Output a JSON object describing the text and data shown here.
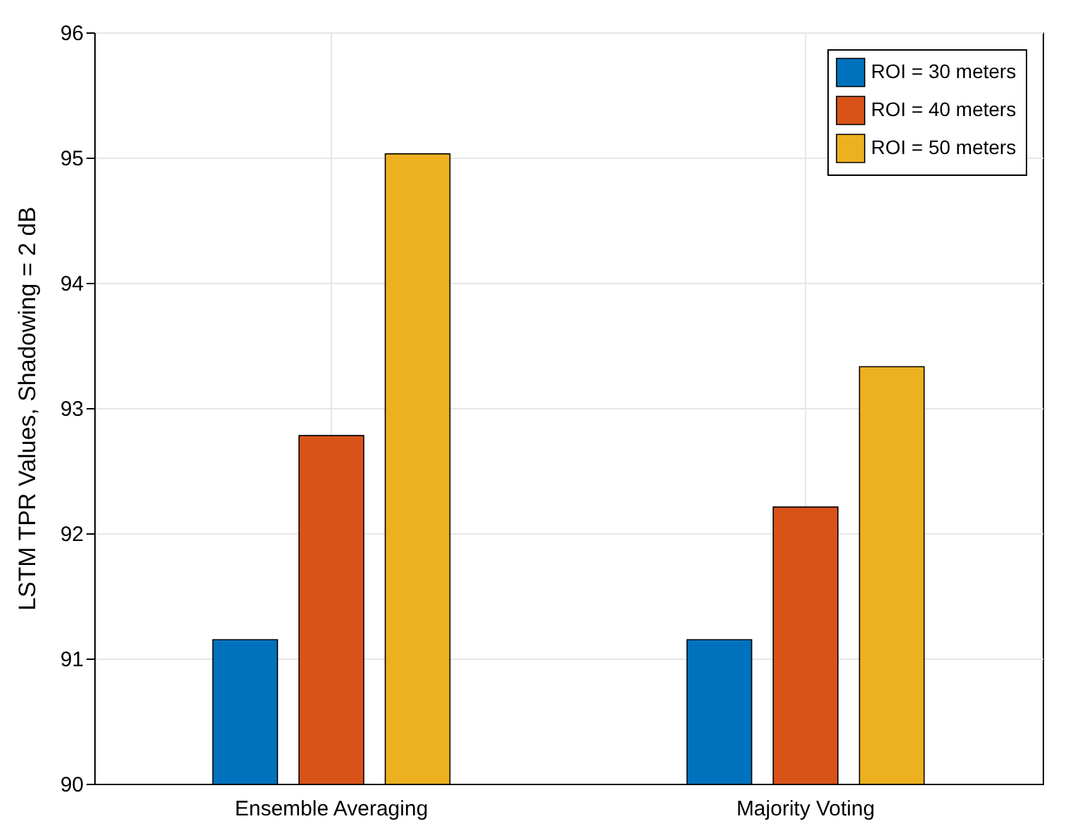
{
  "chart_data": {
    "type": "bar",
    "ylabel": "LSTM TPR Values, Shadowing = 2 dB",
    "categories": [
      "Ensemble Averaging",
      "Majority Voting"
    ],
    "series": [
      {
        "name": "ROI = 30 meters",
        "color": "#0072bd",
        "values": [
          91.15,
          91.15
        ]
      },
      {
        "name": "ROI = 40 meters",
        "color": "#d95319",
        "values": [
          92.78,
          92.21
        ]
      },
      {
        "name": "ROI = 50 meters",
        "color": "#edb120",
        "values": [
          95.03,
          93.33
        ]
      }
    ],
    "ylim": [
      90,
      96
    ],
    "yticks": [
      90,
      91,
      92,
      93,
      94,
      95,
      96
    ],
    "grid": true,
    "legend": "top right"
  }
}
